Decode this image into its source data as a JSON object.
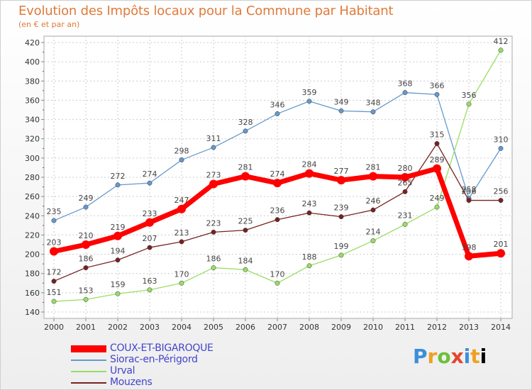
{
  "title": "Evolution des Impôts locaux pour la Commune par Habitant",
  "subtitle": "(en € et par an)",
  "logo": [
    "P",
    "r",
    "o",
    "x",
    "i",
    "t",
    "i"
  ],
  "chart_data": {
    "type": "line",
    "title": "Evolution des Impôts locaux pour la Commune par Habitant",
    "subtitle": "(en € et par an)",
    "x": [
      "2000",
      "2001",
      "2002",
      "2003",
      "2004",
      "2005",
      "2006",
      "2007",
      "2008",
      "2009",
      "2010",
      "2011",
      "2012",
      "2013",
      "2014"
    ],
    "ylim": [
      140,
      420
    ],
    "yticks": [
      140,
      160,
      180,
      200,
      220,
      240,
      260,
      280,
      300,
      320,
      340,
      360,
      380,
      400,
      420
    ],
    "grid": true,
    "legend_position": "bottom-left",
    "series": [
      {
        "name": "COUX-ET-BIGAROQUE",
        "color": "#ff0000",
        "values": [
          203,
          210,
          219,
          233,
          247,
          273,
          281,
          274,
          284,
          277,
          281,
          280,
          289,
          198,
          201
        ]
      },
      {
        "name": "Siorac-en-Périgord",
        "color": "#6699cc",
        "values": [
          235,
          249,
          272,
          274,
          298,
          311,
          328,
          346,
          359,
          349,
          348,
          368,
          366,
          258,
          310
        ]
      },
      {
        "name": "Urval",
        "color": "#99dd66",
        "values": [
          151,
          153,
          159,
          163,
          170,
          186,
          184,
          170,
          188,
          199,
          214,
          231,
          249,
          356,
          412
        ]
      },
      {
        "name": "Mouzens",
        "color": "#772222",
        "values": [
          172,
          186,
          194,
          207,
          213,
          223,
          225,
          236,
          243,
          239,
          246,
          265,
          315,
          256,
          256
        ]
      }
    ]
  }
}
